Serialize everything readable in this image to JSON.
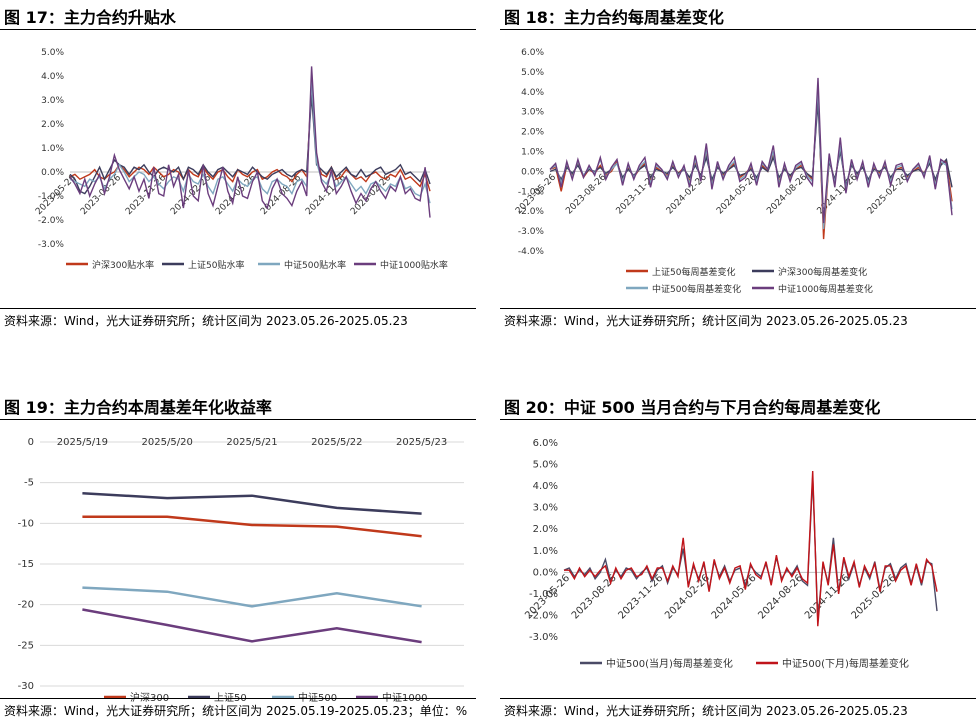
{
  "charts": [
    {
      "title": "图 17：主力合约升贴水",
      "source": "资料来源：Wind，光大证券研究所；统计区间为 2023.05.26-2025.05.23"
    },
    {
      "title": "图 18：主力合约每周基差变化",
      "source": "资料来源：Wind，光大证券研究所；统计区间为 2023.05.26-2025.05.23"
    },
    {
      "title": "图 19：主力合约本周基差年化收益率",
      "source": "资料来源：Wind，光大证券研究所；统计区间为 2025.05.19-2025.05.23；单位：%"
    },
    {
      "title": "图 20：中证 500 当月合约与下月合约每周基差变化",
      "source": "资料来源：Wind，光大证券研究所；统计区间为 2023.05.26-2025.05.23"
    }
  ],
  "chart_data": [
    {
      "type": "line",
      "ylim": [
        -3,
        5
      ],
      "yticks": [
        -3,
        -2,
        -1,
        0,
        1,
        2,
        3,
        4,
        5
      ],
      "ytick_labels": [
        "-3.0%",
        "-2.0%",
        "-1.0%",
        "0.0%",
        "1.0%",
        "2.0%",
        "3.0%",
        "4.0%",
        "5.0%"
      ],
      "xtick_labels": [
        "2023-05-26",
        "2023-08-26",
        "2023-11-26",
        "2024-02-26",
        "2024-05-26",
        "2024-08-26",
        "2024-11-26",
        "2025-02-26"
      ],
      "x_range": [
        "2023-05-26",
        "2025-05-23"
      ],
      "series": [
        {
          "name": "沪深300贴水率",
          "color": "#c0391b",
          "values": [
            -0.2,
            -0.1,
            -0.3,
            -0.2,
            -0.1,
            0.1,
            -0.2,
            -0.3,
            -0.1,
            0.0,
            0.3,
            0.1,
            -0.2,
            0.0,
            0.2,
            0.1,
            -0.1,
            0.2,
            0.0,
            -0.2,
            -0.1,
            0.1,
            0.0,
            -0.3,
            0.1,
            -0.1,
            -0.2,
            0.2,
            -0.1,
            -0.3,
            0.0,
            0.1,
            -0.2,
            -0.4,
            0.1,
            -0.1,
            -0.2,
            0.0,
            0.1,
            -0.3,
            -0.2,
            0.0,
            0.1,
            -0.1,
            -0.2,
            -0.4,
            -0.1,
            0.1,
            -0.2,
            3.6,
            0.5,
            -0.1,
            -0.2,
            0.2,
            -0.3,
            -0.2,
            0.1,
            -0.1,
            -0.3,
            -0.2,
            -0.4,
            -0.1,
            0.0,
            -0.2,
            -0.3,
            -0.1,
            -0.2,
            0.1,
            -0.3,
            -0.2,
            -0.4,
            -0.6,
            -0.1,
            -0.8
          ]
        },
        {
          "name": "上证50贴水率",
          "color": "#3c3c5c",
          "values": [
            -0.1,
            -0.3,
            -0.8,
            -0.9,
            -0.6,
            -0.2,
            0.2,
            -0.3,
            0.1,
            0.5,
            0.3,
            0.2,
            -0.1,
            0.2,
            0.1,
            0.3,
            0.0,
            -0.2,
            0.1,
            0.2,
            0.1,
            0.0,
            0.2,
            -0.3,
            0.2,
            0.1,
            -0.1,
            0.3,
            0.0,
            -0.2,
            0.1,
            0.2,
            0.0,
            -0.2,
            0.1,
            0.0,
            -0.1,
            0.2,
            0.0,
            -0.2,
            -0.3,
            -0.1,
            0.0,
            0.1,
            -0.1,
            -0.2,
            0.0,
            0.1,
            0.0,
            3.2,
            0.3,
            0.1,
            -0.1,
            0.2,
            -0.2,
            0.0,
            0.2,
            -0.1,
            -0.2,
            0.1,
            -0.2,
            -0.1,
            0.1,
            0.2,
            -0.1,
            0.0,
            0.1,
            0.3,
            -0.1,
            0.0,
            -0.2,
            -0.4,
            0.1,
            -0.5
          ]
        },
        {
          "name": "中证500贴水率",
          "color": "#7fa7bf",
          "values": [
            -0.3,
            -0.4,
            -0.5,
            -0.6,
            -0.3,
            -0.4,
            -0.2,
            -0.7,
            -0.3,
            -0.1,
            0.3,
            0.0,
            -0.4,
            -0.2,
            0.0,
            -0.1,
            -0.4,
            -0.2,
            -0.5,
            -0.7,
            -0.4,
            -0.2,
            -0.3,
            -0.8,
            -0.1,
            -0.4,
            -0.5,
            -0.1,
            -0.6,
            -0.9,
            -0.3,
            -0.2,
            -0.5,
            -0.8,
            -0.3,
            -0.5,
            -0.6,
            -0.3,
            -0.2,
            -0.7,
            -0.9,
            -0.4,
            -0.3,
            -0.5,
            -0.6,
            -0.9,
            -0.4,
            -0.3,
            -0.6,
            3.8,
            0.4,
            -0.3,
            -0.5,
            -0.1,
            -0.6,
            -0.4,
            -0.2,
            -0.5,
            -0.8,
            -0.6,
            -0.9,
            -0.5,
            -0.4,
            -0.6,
            -0.8,
            -0.5,
            -0.6,
            -0.2,
            -0.7,
            -0.6,
            -0.9,
            -1.0,
            -0.5,
            -1.3
          ]
        },
        {
          "name": "中证1000贴水率",
          "color": "#6b3d7d",
          "values": [
            -0.2,
            -0.5,
            -0.9,
            -0.3,
            -1.0,
            -0.5,
            -0.1,
            -0.9,
            -0.2,
            0.7,
            0.1,
            -0.3,
            -0.7,
            -0.2,
            -0.8,
            -0.3,
            -1.1,
            0.2,
            -0.9,
            -1.0,
            0.3,
            -0.6,
            -0.1,
            -1.5,
            0.1,
            -1.0,
            -1.2,
            0.3,
            -0.9,
            -1.4,
            -0.6,
            0.2,
            -0.8,
            -1.3,
            -0.2,
            -1.0,
            -1.1,
            -0.4,
            0.0,
            -1.2,
            -1.5,
            -0.7,
            -0.3,
            -0.9,
            -1.1,
            -1.4,
            -0.8,
            -0.4,
            -1.0,
            4.4,
            0.8,
            -0.4,
            -0.8,
            0.1,
            -0.9,
            -0.6,
            -0.2,
            -0.8,
            -1.3,
            -0.9,
            -1.2,
            -0.7,
            -0.4,
            -0.8,
            -1.1,
            -0.6,
            -0.8,
            -0.2,
            -0.9,
            -0.7,
            -1.1,
            -1.2,
            0.2,
            -1.9
          ]
        }
      ]
    },
    {
      "type": "line",
      "ylim": [
        -4,
        6
      ],
      "yticks": [
        -4,
        -3,
        -2,
        -1,
        0,
        1,
        2,
        3,
        4,
        5,
        6
      ],
      "ytick_labels": [
        "-4.0%",
        "-3.0%",
        "-2.0%",
        "-1.0%",
        "0.0%",
        "1.0%",
        "2.0%",
        "3.0%",
        "4.0%",
        "5.0%",
        "6.0%"
      ],
      "xtick_labels": [
        "2023-05-26",
        "2023-08-26",
        "2023-11-26",
        "2024-02-26",
        "2024-05-26",
        "2024-08-26",
        "2024-11-26",
        "2025-02-26"
      ],
      "x_range": [
        "2023-05-26",
        "2025-05-23"
      ],
      "series": [
        {
          "name": "上证50每周基差变化",
          "color": "#c0391b",
          "values": [
            0.1,
            0.2,
            -1.0,
            0.3,
            -0.2,
            0.4,
            -0.3,
            0.1,
            -0.1,
            0.3,
            -0.2,
            0.0,
            0.5,
            -0.4,
            0.2,
            -0.3,
            0.1,
            0.4,
            -0.5,
            0.2,
            0.0,
            -0.2,
            0.3,
            -0.1,
            0.2,
            -0.5,
            0.5,
            -0.3,
            1.0,
            -0.6,
            0.3,
            -0.2,
            0.1,
            0.4,
            -0.3,
            -0.1,
            0.2,
            -0.4,
            0.3,
            0.0,
            0.9,
            -0.5,
            0.2,
            -0.3,
            0.1,
            0.3,
            -0.1,
            -0.4,
            4.0,
            -3.4,
            0.6,
            -0.5,
            1.2,
            -0.8,
            0.4,
            -0.2,
            0.3,
            -0.5,
            0.2,
            -0.1,
            0.3,
            -0.4,
            0.1,
            0.2,
            -0.3,
            0.0,
            0.2,
            -0.1,
            0.5,
            -0.6,
            0.4,
            0.5,
            -1.5
          ]
        },
        {
          "name": "沪深300每周基差变化",
          "color": "#3c3c5c",
          "values": [
            0.0,
            0.1,
            -0.4,
            0.2,
            -0.1,
            0.3,
            -0.2,
            0.1,
            0.0,
            0.2,
            -0.1,
            0.1,
            0.4,
            -0.3,
            0.1,
            -0.2,
            0.1,
            0.3,
            -0.3,
            0.1,
            0.0,
            -0.1,
            0.2,
            -0.1,
            0.1,
            -0.3,
            0.3,
            -0.2,
            0.7,
            -0.4,
            0.2,
            -0.1,
            0.1,
            0.3,
            -0.2,
            -0.1,
            0.1,
            -0.3,
            0.2,
            0.0,
            0.7,
            -0.3,
            0.1,
            -0.2,
            0.1,
            0.2,
            -0.1,
            -0.3,
            3.5,
            -2.7,
            0.5,
            -0.4,
            1.0,
            -0.7,
            0.3,
            -0.1,
            0.2,
            -0.4,
            0.1,
            0.0,
            0.2,
            -0.3,
            0.1,
            0.1,
            -0.2,
            0.0,
            0.1,
            -0.1,
            0.4,
            -0.4,
            0.3,
            0.6,
            -0.8
          ]
        },
        {
          "name": "中证500每周基差变化",
          "color": "#7fa7bf",
          "values": [
            0.1,
            0.3,
            -0.6,
            0.4,
            -0.3,
            0.5,
            -0.2,
            0.2,
            -0.1,
            0.6,
            -0.3,
            0.1,
            0.4,
            -0.5,
            0.3,
            -0.3,
            0.2,
            0.5,
            -0.6,
            0.3,
            0.1,
            -0.3,
            0.4,
            -0.2,
            0.2,
            -0.6,
            0.6,
            -0.4,
            1.1,
            -0.7,
            0.4,
            -0.3,
            0.2,
            0.5,
            -0.4,
            -0.2,
            0.3,
            -0.5,
            0.4,
            0.1,
            1.0,
            -0.6,
            0.3,
            -0.4,
            0.2,
            0.4,
            -0.2,
            -0.5,
            4.2,
            -2.9,
            0.7,
            -0.6,
            1.3,
            -0.9,
            0.5,
            -0.3,
            0.4,
            -0.6,
            0.3,
            -0.2,
            0.4,
            -0.5,
            0.2,
            0.3,
            -0.4,
            0.1,
            0.3,
            -0.2,
            0.6,
            -0.7,
            0.5,
            0.3,
            -1.9
          ]
        },
        {
          "name": "中证1000每周基差变化",
          "color": "#6b3d7d",
          "values": [
            0.1,
            0.4,
            -0.8,
            0.5,
            -0.4,
            0.6,
            -0.3,
            0.3,
            -0.2,
            0.7,
            -0.4,
            0.2,
            0.6,
            -0.7,
            0.4,
            -0.4,
            0.3,
            0.7,
            -0.8,
            0.4,
            0.1,
            -0.4,
            0.5,
            -0.3,
            0.3,
            -0.8,
            0.8,
            -0.5,
            1.4,
            -0.9,
            0.5,
            -0.4,
            0.3,
            0.7,
            -0.5,
            -0.3,
            0.4,
            -0.7,
            0.5,
            0.1,
            1.3,
            -0.8,
            0.4,
            -0.5,
            0.3,
            0.5,
            -0.3,
            -0.7,
            4.7,
            -2.6,
            0.9,
            -0.8,
            1.7,
            -1.1,
            0.6,
            -0.4,
            0.5,
            -0.8,
            0.4,
            -0.3,
            0.5,
            -0.7,
            0.3,
            0.4,
            -0.5,
            0.1,
            0.4,
            -0.3,
            0.8,
            -0.9,
            0.6,
            0.4,
            -2.2
          ]
        }
      ]
    },
    {
      "type": "line",
      "ylim": [
        -30,
        0
      ],
      "yticks": [
        0,
        -5,
        -10,
        -15,
        -20,
        -25,
        -30
      ],
      "ytick_labels": [
        "0",
        "-5",
        "-10",
        "-15",
        "-20",
        "-25",
        "-30"
      ],
      "categories": [
        "2025/5/19",
        "2025/5/20",
        "2025/5/21",
        "2025/5/22",
        "2025/5/23"
      ],
      "grid": "horizontal",
      "series": [
        {
          "name": "沪深300",
          "color": "#c0391b",
          "values": [
            -9.2,
            -9.2,
            -10.2,
            -10.4,
            -11.6
          ]
        },
        {
          "name": "上证50",
          "color": "#3c3c5c",
          "values": [
            -6.3,
            -6.9,
            -6.6,
            -8.1,
            -8.8
          ]
        },
        {
          "name": "中证500",
          "color": "#7fa7bf",
          "values": [
            -17.9,
            -18.4,
            -20.2,
            -18.6,
            -20.2
          ]
        },
        {
          "name": "中证1000",
          "color": "#6b3d7d",
          "values": [
            -20.6,
            -22.5,
            -24.5,
            -22.9,
            -24.6
          ]
        }
      ]
    },
    {
      "type": "line",
      "ylim": [
        -3,
        6
      ],
      "yticks": [
        -3,
        -2,
        -1,
        0,
        1,
        2,
        3,
        4,
        5,
        6
      ],
      "ytick_labels": [
        "-3.0%",
        "-2.0%",
        "-1.0%",
        "0.0%",
        "1.0%",
        "2.0%",
        "3.0%",
        "4.0%",
        "5.0%",
        "6.0%"
      ],
      "xtick_labels": [
        "2023-05-26",
        "2023-08-26",
        "2023-11-26",
        "2024-02-26",
        "2024-05-26",
        "2024-08-26",
        "2024-11-26",
        "2025-02-26"
      ],
      "x_range": [
        "2023-05-26",
        "2025-05-23"
      ],
      "series": [
        {
          "name": "中证500(当月)每周基差变化",
          "color": "#4a4a66",
          "values": [
            0.1,
            0.2,
            -0.2,
            0.1,
            -0.1,
            0.2,
            -0.3,
            0.0,
            0.6,
            -0.4,
            0.1,
            -0.2,
            0.2,
            0.1,
            -0.3,
            0.0,
            0.2,
            -0.4,
            0.1,
            0.3,
            -0.5,
            0.2,
            -0.1,
            1.1,
            -0.6,
            0.3,
            -0.3,
            0.4,
            -0.8,
            0.5,
            -0.2,
            0.3,
            -0.4,
            0.1,
            0.2,
            -0.6,
            0.3,
            0.0,
            -0.2,
            0.4,
            -0.5,
            0.7,
            -0.3,
            0.1,
            -0.1,
            0.3,
            -0.4,
            -0.6,
            4.4,
            -2.2,
            0.4,
            -0.5,
            1.6,
            -0.9,
            0.6,
            -0.3,
            0.4,
            -0.6,
            0.2,
            -0.3,
            0.5,
            -0.8,
            0.2,
            0.4,
            -0.3,
            0.2,
            0.4,
            -0.5,
            0.3,
            -0.6,
            0.5,
            0.4,
            -1.8
          ]
        },
        {
          "name": "中证500(下月)每周基差变化",
          "color": "#c0141a",
          "values": [
            0.1,
            0.1,
            -0.3,
            0.2,
            -0.2,
            0.1,
            -0.2,
            0.1,
            0.3,
            -0.5,
            0.2,
            -0.3,
            0.1,
            0.2,
            -0.2,
            -0.1,
            0.3,
            -0.3,
            0.2,
            0.2,
            -0.4,
            0.3,
            -0.2,
            1.6,
            -0.7,
            0.4,
            -0.4,
            0.5,
            -0.9,
            0.6,
            -0.3,
            0.2,
            -0.5,
            0.2,
            0.3,
            -0.8,
            0.4,
            -0.1,
            -0.3,
            0.5,
            -0.6,
            0.8,
            -0.4,
            0.2,
            -0.2,
            0.2,
            -0.3,
            -0.5,
            4.7,
            -2.5,
            0.5,
            -0.6,
            1.3,
            -1.0,
            0.7,
            -0.2,
            0.5,
            -0.7,
            0.3,
            -0.2,
            0.4,
            -0.9,
            0.3,
            0.3,
            -0.4,
            0.1,
            0.3,
            -0.6,
            0.4,
            -0.5,
            0.6,
            0.3,
            -0.9
          ]
        }
      ]
    }
  ]
}
